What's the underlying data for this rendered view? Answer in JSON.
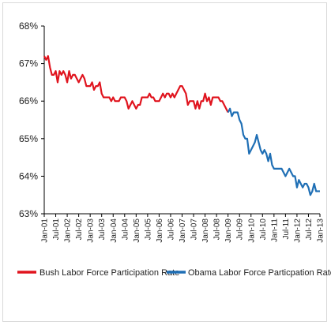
{
  "chart_data": {
    "type": "line",
    "ylim": [
      63,
      68
    ],
    "y_ticks": [
      "63%",
      "64%",
      "65%",
      "66%",
      "67%",
      "68%"
    ],
    "x_ticks": [
      "Jan-01",
      "Jul-01",
      "Jan-02",
      "Jul-02",
      "Jan-03",
      "Jul-03",
      "Jan-04",
      "Jul-04",
      "Jan-05",
      "Jul-05",
      "Jan-06",
      "Jul-06",
      "Jan-07",
      "Jul-07",
      "Jan-08",
      "Jul-08",
      "Jan-09",
      "Jul-09",
      "Jan-10",
      "Jul-10",
      "Jan-11",
      "Jul-11",
      "Jan-12",
      "Jul-12",
      "Jan-13"
    ],
    "grid": false,
    "legend_position": "bottom",
    "colors": {
      "bush": "#e0141e",
      "obama": "#1f6fb5"
    },
    "series": [
      {
        "name": "Bush Labor Force Participation Rate",
        "color": "#e0141e",
        "x": [
          "2001-01",
          "2001-02",
          "2001-03",
          "2001-04",
          "2001-05",
          "2001-06",
          "2001-07",
          "2001-08",
          "2001-09",
          "2001-10",
          "2001-11",
          "2001-12",
          "2002-01",
          "2002-02",
          "2002-03",
          "2002-04",
          "2002-05",
          "2002-06",
          "2002-07",
          "2002-08",
          "2002-09",
          "2002-10",
          "2002-11",
          "2002-12",
          "2003-01",
          "2003-02",
          "2003-03",
          "2003-04",
          "2003-05",
          "2003-06",
          "2003-07",
          "2003-08",
          "2003-09",
          "2003-10",
          "2003-11",
          "2003-12",
          "2004-01",
          "2004-02",
          "2004-03",
          "2004-04",
          "2004-05",
          "2004-06",
          "2004-07",
          "2004-08",
          "2004-09",
          "2004-10",
          "2004-11",
          "2004-12",
          "2005-01",
          "2005-02",
          "2005-03",
          "2005-04",
          "2005-05",
          "2005-06",
          "2005-07",
          "2005-08",
          "2005-09",
          "2005-10",
          "2005-11",
          "2005-12",
          "2006-01",
          "2006-02",
          "2006-03",
          "2006-04",
          "2006-05",
          "2006-06",
          "2006-07",
          "2006-08",
          "2006-09",
          "2006-10",
          "2006-11",
          "2006-12",
          "2007-01",
          "2007-02",
          "2007-03",
          "2007-04",
          "2007-05",
          "2007-06",
          "2007-07",
          "2007-08",
          "2007-09",
          "2007-10",
          "2007-11",
          "2007-12",
          "2008-01",
          "2008-02",
          "2008-03",
          "2008-04",
          "2008-05",
          "2008-06",
          "2008-07",
          "2008-08",
          "2008-09",
          "2008-10",
          "2008-11",
          "2008-12",
          "2009-01"
        ],
        "values": [
          67.2,
          67.1,
          67.2,
          66.9,
          66.7,
          66.7,
          66.8,
          66.5,
          66.8,
          66.7,
          66.8,
          66.7,
          66.5,
          66.8,
          66.6,
          66.7,
          66.7,
          66.6,
          66.5,
          66.6,
          66.7,
          66.6,
          66.4,
          66.4,
          66.4,
          66.5,
          66.3,
          66.4,
          66.4,
          66.5,
          66.2,
          66.1,
          66.1,
          66.1,
          66.1,
          66.0,
          66.1,
          66.0,
          66.0,
          66.0,
          66.1,
          66.1,
          66.1,
          66.0,
          65.8,
          65.9,
          66.0,
          65.9,
          65.8,
          65.9,
          65.9,
          66.1,
          66.1,
          66.1,
          66.1,
          66.2,
          66.1,
          66.1,
          66.0,
          66.0,
          66.0,
          66.1,
          66.2,
          66.1,
          66.2,
          66.2,
          66.1,
          66.2,
          66.1,
          66.2,
          66.3,
          66.4,
          66.4,
          66.3,
          66.2,
          65.9,
          66.0,
          66.0,
          66.0,
          65.8,
          66.0,
          65.8,
          66.0,
          66.0,
          66.2,
          66.0,
          66.1,
          65.9,
          66.1,
          66.1,
          66.1,
          66.1,
          66.0,
          66.0,
          65.9,
          65.8,
          65.7
        ]
      },
      {
        "name": "Obama Labor Force Particpation Rate",
        "color": "#1f6fb5",
        "x": [
          "2009-01",
          "2009-02",
          "2009-03",
          "2009-04",
          "2009-05",
          "2009-06",
          "2009-07",
          "2009-08",
          "2009-09",
          "2009-10",
          "2009-11",
          "2009-12",
          "2010-01",
          "2010-02",
          "2010-03",
          "2010-04",
          "2010-05",
          "2010-06",
          "2010-07",
          "2010-08",
          "2010-09",
          "2010-10",
          "2010-11",
          "2010-12",
          "2011-01",
          "2011-02",
          "2011-03",
          "2011-04",
          "2011-05",
          "2011-06",
          "2011-07",
          "2011-08",
          "2011-09",
          "2011-10",
          "2011-11",
          "2011-12",
          "2012-01",
          "2012-02",
          "2012-03",
          "2012-04",
          "2012-05",
          "2012-06",
          "2012-07",
          "2012-08",
          "2012-09",
          "2012-10",
          "2012-11",
          "2012-12",
          "2013-01"
        ],
        "values": [
          65.7,
          65.8,
          65.6,
          65.7,
          65.7,
          65.7,
          65.5,
          65.4,
          65.1,
          65.0,
          65.0,
          64.6,
          64.7,
          64.8,
          64.9,
          65.1,
          64.9,
          64.7,
          64.6,
          64.7,
          64.6,
          64.4,
          64.6,
          64.3,
          64.2,
          64.2,
          64.2,
          64.2,
          64.2,
          64.1,
          64.0,
          64.1,
          64.2,
          64.1,
          64.0,
          64.0,
          63.7,
          63.9,
          63.8,
          63.7,
          63.8,
          63.8,
          63.7,
          63.5,
          63.6,
          63.8,
          63.6,
          63.6,
          63.6
        ]
      }
    ]
  }
}
